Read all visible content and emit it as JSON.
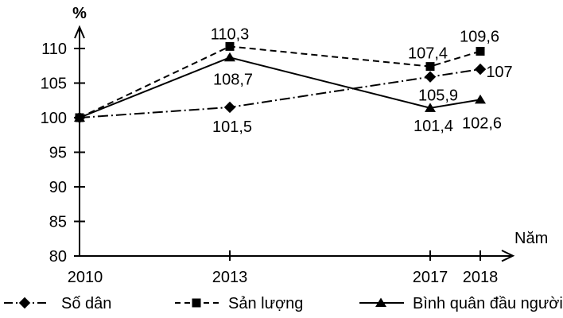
{
  "chart_data": {
    "type": "line",
    "title": "",
    "ylabel": "%",
    "xlabel": "Năm",
    "x": [
      2010,
      2013,
      2017,
      2018
    ],
    "x_tick_labels": [
      "2010",
      "2013",
      "2017",
      "2018"
    ],
    "y_ticks": [
      110,
      105,
      100,
      95,
      90,
      85,
      80
    ],
    "ylim": [
      80,
      112
    ],
    "grid": false,
    "legend_position": "bottom",
    "decimal_separator": ",",
    "color": "#000000",
    "background": "#ffffff",
    "series": [
      {
        "name": "Số dân",
        "marker": "diamond",
        "line_style": "dash-dot",
        "values": [
          100,
          101.5,
          105.9,
          107
        ],
        "labels": [
          "",
          "101,5",
          "105,9",
          "107"
        ]
      },
      {
        "name": "Sản lượng",
        "marker": "square",
        "line_style": "dashed",
        "values": [
          100,
          110.3,
          107.4,
          109.6
        ],
        "labels": [
          "",
          "110,3",
          "107,4",
          "109,6"
        ]
      },
      {
        "name": "Bình quân đầu người",
        "marker": "triangle",
        "line_style": "solid",
        "values": [
          100,
          108.7,
          101.4,
          102.6
        ],
        "labels": [
          "",
          "108,7",
          "101,4",
          "102,6"
        ]
      }
    ]
  }
}
